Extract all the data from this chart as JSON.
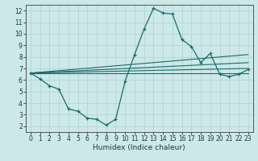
{
  "xlabel": "Humidex (Indice chaleur)",
  "bg_color": "#cce8e8",
  "grid_color": "#b8d8d8",
  "line_color": "#1a6b6b",
  "xlim": [
    -0.5,
    23.5
  ],
  "ylim": [
    1.5,
    12.5
  ],
  "xticks": [
    0,
    1,
    2,
    3,
    4,
    5,
    6,
    7,
    8,
    9,
    10,
    11,
    12,
    13,
    14,
    15,
    16,
    17,
    18,
    19,
    20,
    21,
    22,
    23
  ],
  "yticks": [
    2,
    3,
    4,
    5,
    6,
    7,
    8,
    9,
    10,
    11,
    12
  ],
  "main_x": [
    0,
    1,
    2,
    3,
    4,
    5,
    6,
    7,
    8,
    9,
    10,
    11,
    12,
    13,
    14,
    15,
    16,
    17,
    18,
    19,
    20,
    21,
    22,
    23
  ],
  "main_y": [
    6.6,
    6.1,
    5.5,
    5.2,
    3.5,
    3.3,
    2.7,
    2.6,
    2.1,
    2.6,
    5.9,
    8.2,
    10.4,
    12.2,
    11.8,
    11.7,
    9.5,
    8.9,
    7.5,
    8.3,
    6.5,
    6.3,
    6.5,
    6.9
  ],
  "line_fan": [
    {
      "x": [
        0,
        23
      ],
      "y": [
        6.6,
        8.2
      ]
    },
    {
      "x": [
        0,
        23
      ],
      "y": [
        6.6,
        7.5
      ]
    },
    {
      "x": [
        0,
        23
      ],
      "y": [
        6.6,
        7.0
      ]
    },
    {
      "x": [
        0,
        23
      ],
      "y": [
        6.6,
        6.6
      ]
    }
  ]
}
